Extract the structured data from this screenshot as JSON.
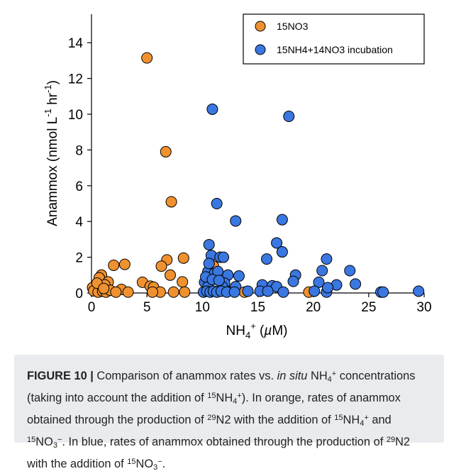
{
  "chart_data": {
    "type": "scatter",
    "xlabel": "NH4+ (µM)",
    "ylabel": "Anammox (nmol L-1 hr-1)",
    "xlim": [
      0,
      30
    ],
    "ylim": [
      0,
      15
    ],
    "xticks": [
      0,
      5,
      10,
      15,
      20,
      25,
      30
    ],
    "yticks": [
      0,
      2,
      4,
      6,
      8,
      10,
      12,
      14
    ],
    "legend_position": "top-right",
    "grid": false,
    "series": [
      {
        "name": "15NO3",
        "color": "#f0912f",
        "points": [
          [
            5.0,
            13.15
          ],
          [
            6.7,
            7.9
          ],
          [
            7.2,
            5.1
          ],
          [
            8.3,
            1.95
          ],
          [
            6.8,
            1.85
          ],
          [
            6.3,
            1.5
          ],
          [
            2.0,
            1.55
          ],
          [
            3.0,
            1.6
          ],
          [
            7.1,
            1.0
          ],
          [
            0.9,
            1.0
          ],
          [
            0.7,
            0.85
          ],
          [
            1.5,
            0.62
          ],
          [
            4.6,
            0.6
          ],
          [
            8.2,
            0.62
          ],
          [
            0.3,
            0.38
          ],
          [
            1.2,
            0.45
          ],
          [
            2.7,
            0.2
          ],
          [
            3.3,
            0.05
          ],
          [
            5.3,
            0.38
          ],
          [
            5.6,
            0.32
          ],
          [
            6.2,
            0.05
          ],
          [
            7.4,
            0.05
          ],
          [
            0.1,
            0.3
          ],
          [
            0.4,
            0.2
          ],
          [
            0.2,
            0.12
          ],
          [
            0.6,
            0.05
          ],
          [
            1.0,
            0.1
          ],
          [
            1.3,
            0.05
          ],
          [
            1.7,
            0.15
          ],
          [
            2.2,
            0.05
          ],
          [
            5.5,
            0.05
          ],
          [
            8.4,
            0.05
          ],
          [
            11.0,
            1.5
          ],
          [
            13.8,
            0.05
          ],
          [
            19.6,
            0.05
          ],
          [
            10.5,
            0.3
          ],
          [
            12.0,
            0.3
          ],
          [
            0.5,
            0.55
          ],
          [
            1.1,
            0.25
          ]
        ]
      },
      {
        "name": "15NH4+14NO3 incubation",
        "color": "#3a77e0",
        "points": [
          [
            10.9,
            10.28
          ],
          [
            17.8,
            9.88
          ],
          [
            11.3,
            5.0
          ],
          [
            13.0,
            4.03
          ],
          [
            17.2,
            4.1
          ],
          [
            10.6,
            2.7
          ],
          [
            16.7,
            2.8
          ],
          [
            10.8,
            2.1
          ],
          [
            11.6,
            2.0
          ],
          [
            11.9,
            2.0
          ],
          [
            17.2,
            2.3
          ],
          [
            15.8,
            1.9
          ],
          [
            21.2,
            1.9
          ],
          [
            23.3,
            1.25
          ],
          [
            20.8,
            1.25
          ],
          [
            10.5,
            1.2
          ],
          [
            11.1,
            1.1
          ],
          [
            11.4,
            1.2
          ],
          [
            12.3,
            1.0
          ],
          [
            13.3,
            0.95
          ],
          [
            18.4,
            1.0
          ],
          [
            18.2,
            0.65
          ],
          [
            20.5,
            0.6
          ],
          [
            23.8,
            0.5
          ],
          [
            22.1,
            0.45
          ],
          [
            15.4,
            0.45
          ],
          [
            16.3,
            0.4
          ],
          [
            16.7,
            0.35
          ],
          [
            12.0,
            0.55
          ],
          [
            10.2,
            0.6
          ],
          [
            10.5,
            0.35
          ],
          [
            11.8,
            0.35
          ],
          [
            13.0,
            0.35
          ],
          [
            15.2,
            0.1
          ],
          [
            14.1,
            0.1
          ],
          [
            15.9,
            0.1
          ],
          [
            17.3,
            0.05
          ],
          [
            20.1,
            0.1
          ],
          [
            21.2,
            0.05
          ],
          [
            21.3,
            0.3
          ],
          [
            26.1,
            0.05
          ],
          [
            26.3,
            0.05
          ],
          [
            29.5,
            0.1
          ],
          [
            10.1,
            0.05
          ],
          [
            10.4,
            0.1
          ],
          [
            10.7,
            0.05
          ],
          [
            11.0,
            0.1
          ],
          [
            11.3,
            0.05
          ],
          [
            11.7,
            0.1
          ],
          [
            12.2,
            0.05
          ],
          [
            12.9,
            0.05
          ],
          [
            10.3,
            0.9
          ],
          [
            10.9,
            0.75
          ],
          [
            11.5,
            0.7
          ],
          [
            10.6,
            1.65
          ]
        ]
      }
    ]
  },
  "caption": {
    "label": "FIGURE 10 |",
    "line1_a": "Comparison of anammox rates vs.",
    "line1_italic": "in situ",
    "line1_b": "NH",
    "line1_sub": "4",
    "line1_sup": "+",
    "line1_c": "concentrations",
    "line2_a": "(taking into account the addition of",
    "line2_sup1": "15",
    "line2_b": "NH",
    "line2_sub": "4",
    "line2_sup2": "+",
    "line2_c": "). In orange, rates of anammox",
    "line3_a": "obtained through the production of",
    "line3_sup1": "29",
    "line3_b": "N2 with the addition of",
    "line3_sup2": "15",
    "line3_c": "NH",
    "line3_sub": "4",
    "line3_sup3": "+",
    "line3_d": "and",
    "line4_sup1": "15",
    "line4_a": "NO",
    "line4_sub": "3",
    "line4_sup2": "−",
    "line4_b": ". In blue, rates of anammox obtained through the production of",
    "line4_sup3": "29",
    "line4_c": "N2",
    "line5_a": "with the addition of",
    "line5_sup1": "15",
    "line5_b": "NO",
    "line5_sub": "3",
    "line5_sup2": "−",
    "line5_c": "."
  }
}
